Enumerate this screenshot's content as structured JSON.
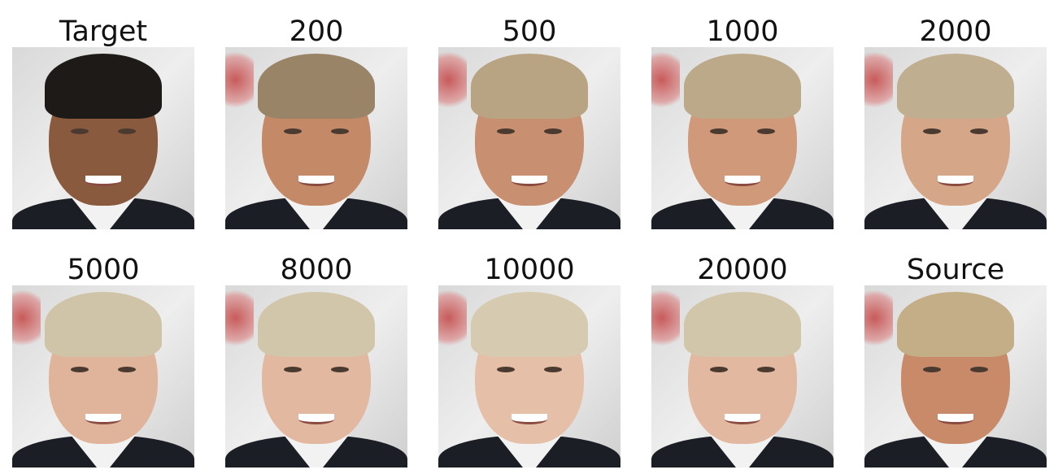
{
  "figure": {
    "panels": [
      {
        "label": "Target",
        "skin": "#8a5a3e",
        "hair": "#1e1a18",
        "red": false
      },
      {
        "label": "200",
        "skin": "#c48a68",
        "hair": "#9a8468",
        "red": true
      },
      {
        "label": "500",
        "skin": "#c89070",
        "hair": "#b8a482",
        "red": true
      },
      {
        "label": "1000",
        "skin": "#d09a7a",
        "hair": "#bba98a",
        "red": true
      },
      {
        "label": "2000",
        "skin": "#d6a688",
        "hair": "#c0ae90",
        "red": true
      },
      {
        "label": "5000",
        "skin": "#e0b49a",
        "hair": "#d0c4a8",
        "red": true
      },
      {
        "label": "8000",
        "skin": "#e2b8a0",
        "hair": "#d2c6aa",
        "red": true
      },
      {
        "label": "10000",
        "skin": "#e6bfa8",
        "hair": "#d6cab0",
        "red": true
      },
      {
        "label": "20000",
        "skin": "#e2b8a0",
        "hair": "#d2c6aa",
        "red": true
      },
      {
        "label": "Source",
        "skin": "#c88a68",
        "hair": "#c4ae88",
        "red": true
      }
    ]
  }
}
